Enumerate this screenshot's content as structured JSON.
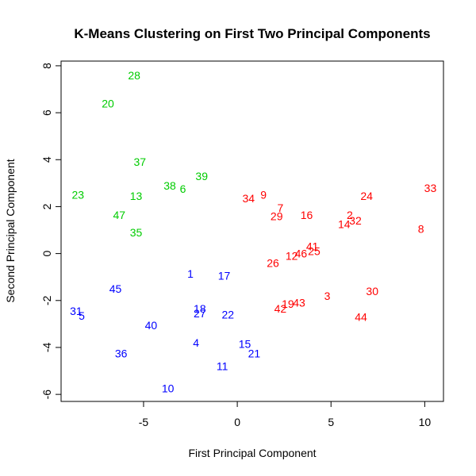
{
  "chart_data": {
    "type": "scatter",
    "title": "K-Means Clustering on First Two Principal Components",
    "xlabel": "First Principal Component",
    "ylabel": "Second Principal Component",
    "xlim": [
      -9.4,
      11.0
    ],
    "ylim": [
      -6.3,
      8.2
    ],
    "x_ticks": [
      -5,
      0,
      5,
      10
    ],
    "y_ticks": [
      -6,
      -4,
      -2,
      0,
      2,
      4,
      6,
      8
    ],
    "marker": "text-labels",
    "grid": false,
    "legend": "none",
    "series": [
      {
        "color": "#00cc00",
        "points": [
          {
            "label": "28",
            "x": -5.5,
            "y": 7.6
          },
          {
            "label": "20",
            "x": -6.9,
            "y": 6.4
          },
          {
            "label": "37",
            "x": -5.2,
            "y": 3.9
          },
          {
            "label": "38",
            "x": -3.6,
            "y": 2.9
          },
          {
            "label": "6",
            "x": -2.9,
            "y": 2.75
          },
          {
            "label": "39",
            "x": -1.9,
            "y": 3.3
          },
          {
            "label": "23",
            "x": -8.5,
            "y": 2.5
          },
          {
            "label": "13",
            "x": -5.4,
            "y": 2.45
          },
          {
            "label": "47",
            "x": -6.3,
            "y": 1.65
          },
          {
            "label": "35",
            "x": -5.4,
            "y": 0.9
          }
        ]
      },
      {
        "color": "#ff0000",
        "points": [
          {
            "label": "33",
            "x": 10.3,
            "y": 2.8
          },
          {
            "label": "24",
            "x": 6.9,
            "y": 2.45
          },
          {
            "label": "34",
            "x": 0.6,
            "y": 2.35
          },
          {
            "label": "9",
            "x": 1.4,
            "y": 2.5
          },
          {
            "label": "7",
            "x": 2.3,
            "y": 1.95
          },
          {
            "label": "29",
            "x": 2.1,
            "y": 1.6
          },
          {
            "label": "16",
            "x": 3.7,
            "y": 1.65
          },
          {
            "label": "2",
            "x": 6.0,
            "y": 1.65
          },
          {
            "label": "32",
            "x": 6.3,
            "y": 1.4
          },
          {
            "label": "14",
            "x": 5.7,
            "y": 1.25
          },
          {
            "label": "8",
            "x": 9.8,
            "y": 1.05
          },
          {
            "label": "41",
            "x": 4.0,
            "y": 0.3
          },
          {
            "label": "25",
            "x": 4.1,
            "y": 0.1
          },
          {
            "label": "46",
            "x": 3.4,
            "y": 0.0
          },
          {
            "label": "12",
            "x": 2.9,
            "y": -0.1
          },
          {
            "label": "26",
            "x": 1.9,
            "y": -0.4
          },
          {
            "label": "30",
            "x": 7.2,
            "y": -1.6
          },
          {
            "label": "3",
            "x": 4.8,
            "y": -1.8
          },
          {
            "label": "19",
            "x": 2.7,
            "y": -2.15
          },
          {
            "label": "43",
            "x": 3.3,
            "y": -2.1
          },
          {
            "label": "42",
            "x": 2.3,
            "y": -2.35
          },
          {
            "label": "44",
            "x": 6.6,
            "y": -2.7
          }
        ]
      },
      {
        "color": "#0000ff",
        "points": [
          {
            "label": "1",
            "x": -2.5,
            "y": -0.85
          },
          {
            "label": "17",
            "x": -0.7,
            "y": -0.95
          },
          {
            "label": "45",
            "x": -6.5,
            "y": -1.5
          },
          {
            "label": "31",
            "x": -8.6,
            "y": -2.45
          },
          {
            "label": "5",
            "x": -8.3,
            "y": -2.65
          },
          {
            "label": "18",
            "x": -2.0,
            "y": -2.35
          },
          {
            "label": "27",
            "x": -2.0,
            "y": -2.55
          },
          {
            "label": "22",
            "x": -0.5,
            "y": -2.6
          },
          {
            "label": "40",
            "x": -4.6,
            "y": -3.05
          },
          {
            "label": "4",
            "x": -2.2,
            "y": -3.8
          },
          {
            "label": "15",
            "x": 0.4,
            "y": -3.85
          },
          {
            "label": "36",
            "x": -6.2,
            "y": -4.25
          },
          {
            "label": "21",
            "x": 0.9,
            "y": -4.25
          },
          {
            "label": "11",
            "x": -0.8,
            "y": -4.8
          },
          {
            "label": "10",
            "x": -3.7,
            "y": -5.75
          }
        ]
      }
    ]
  }
}
